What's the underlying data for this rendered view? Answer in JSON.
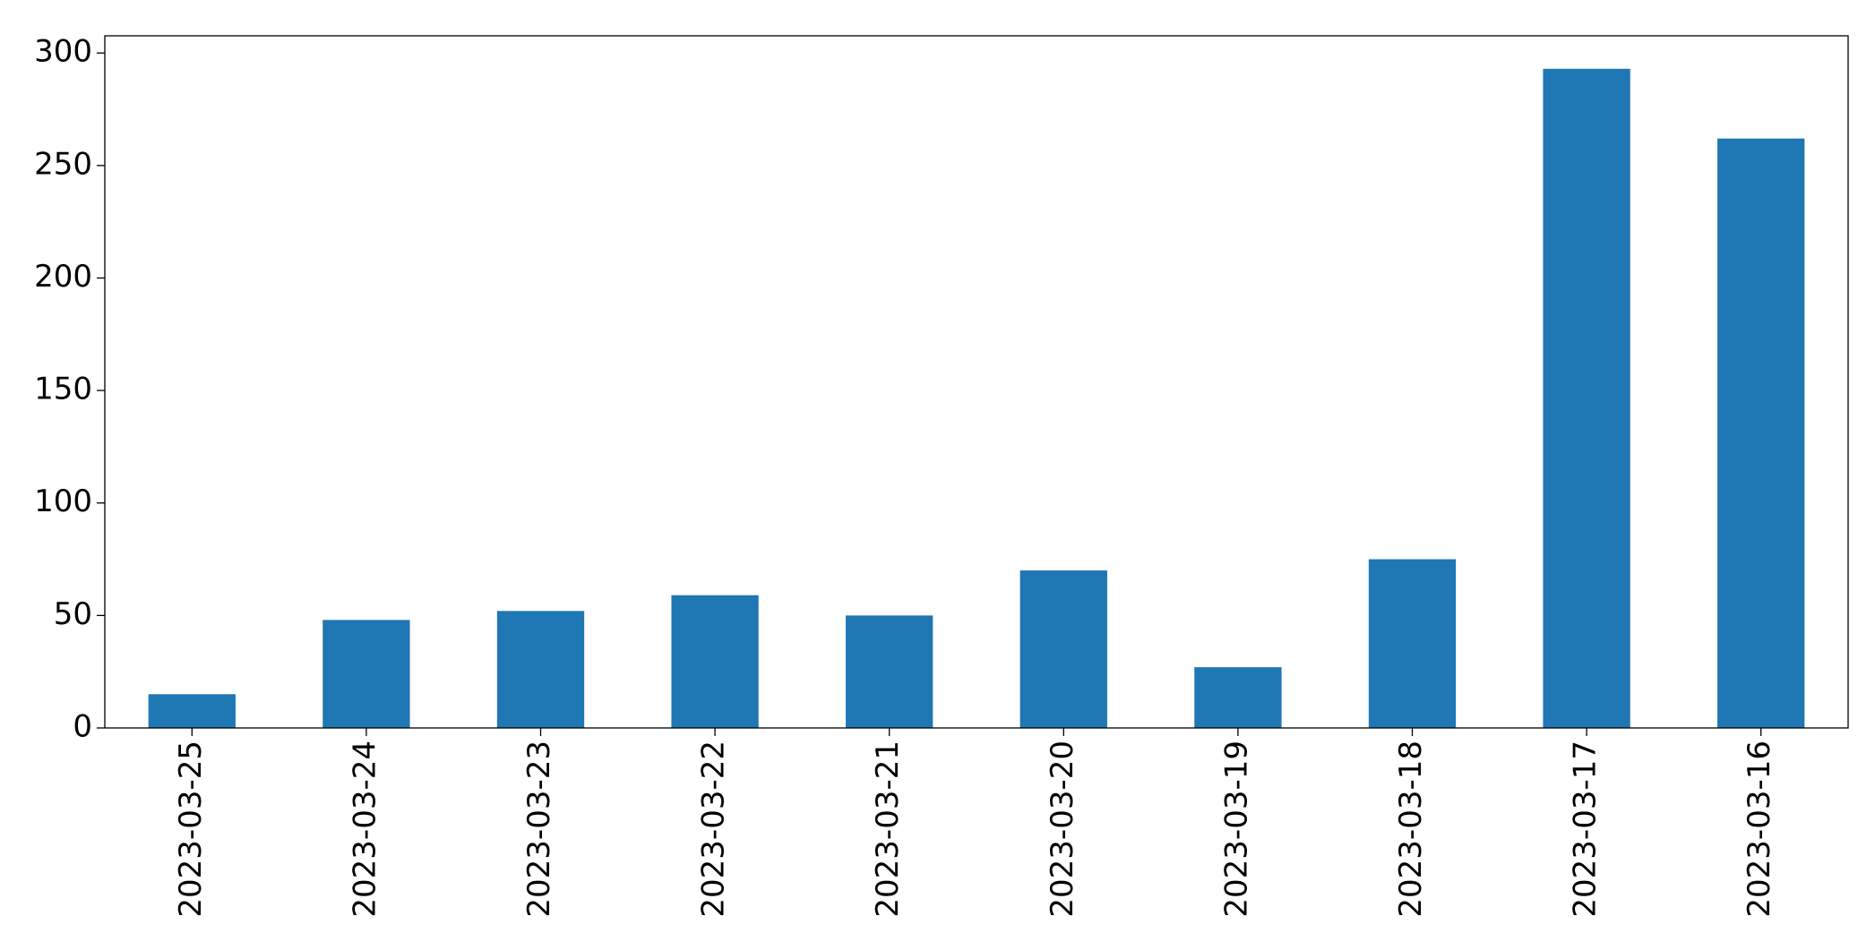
{
  "chart_data": {
    "type": "bar",
    "categories": [
      "2023-03-25",
      "2023-03-24",
      "2023-03-23",
      "2023-03-22",
      "2023-03-21",
      "2023-03-20",
      "2023-03-19",
      "2023-03-18",
      "2023-03-17",
      "2023-03-16"
    ],
    "values": [
      15,
      48,
      52,
      59,
      50,
      70,
      27,
      75,
      293,
      262
    ],
    "color": "#1f77b4",
    "ylim": [
      0,
      307.65
    ],
    "yticks": [
      0,
      50,
      100,
      150,
      200,
      250,
      300
    ],
    "grid": false
  }
}
